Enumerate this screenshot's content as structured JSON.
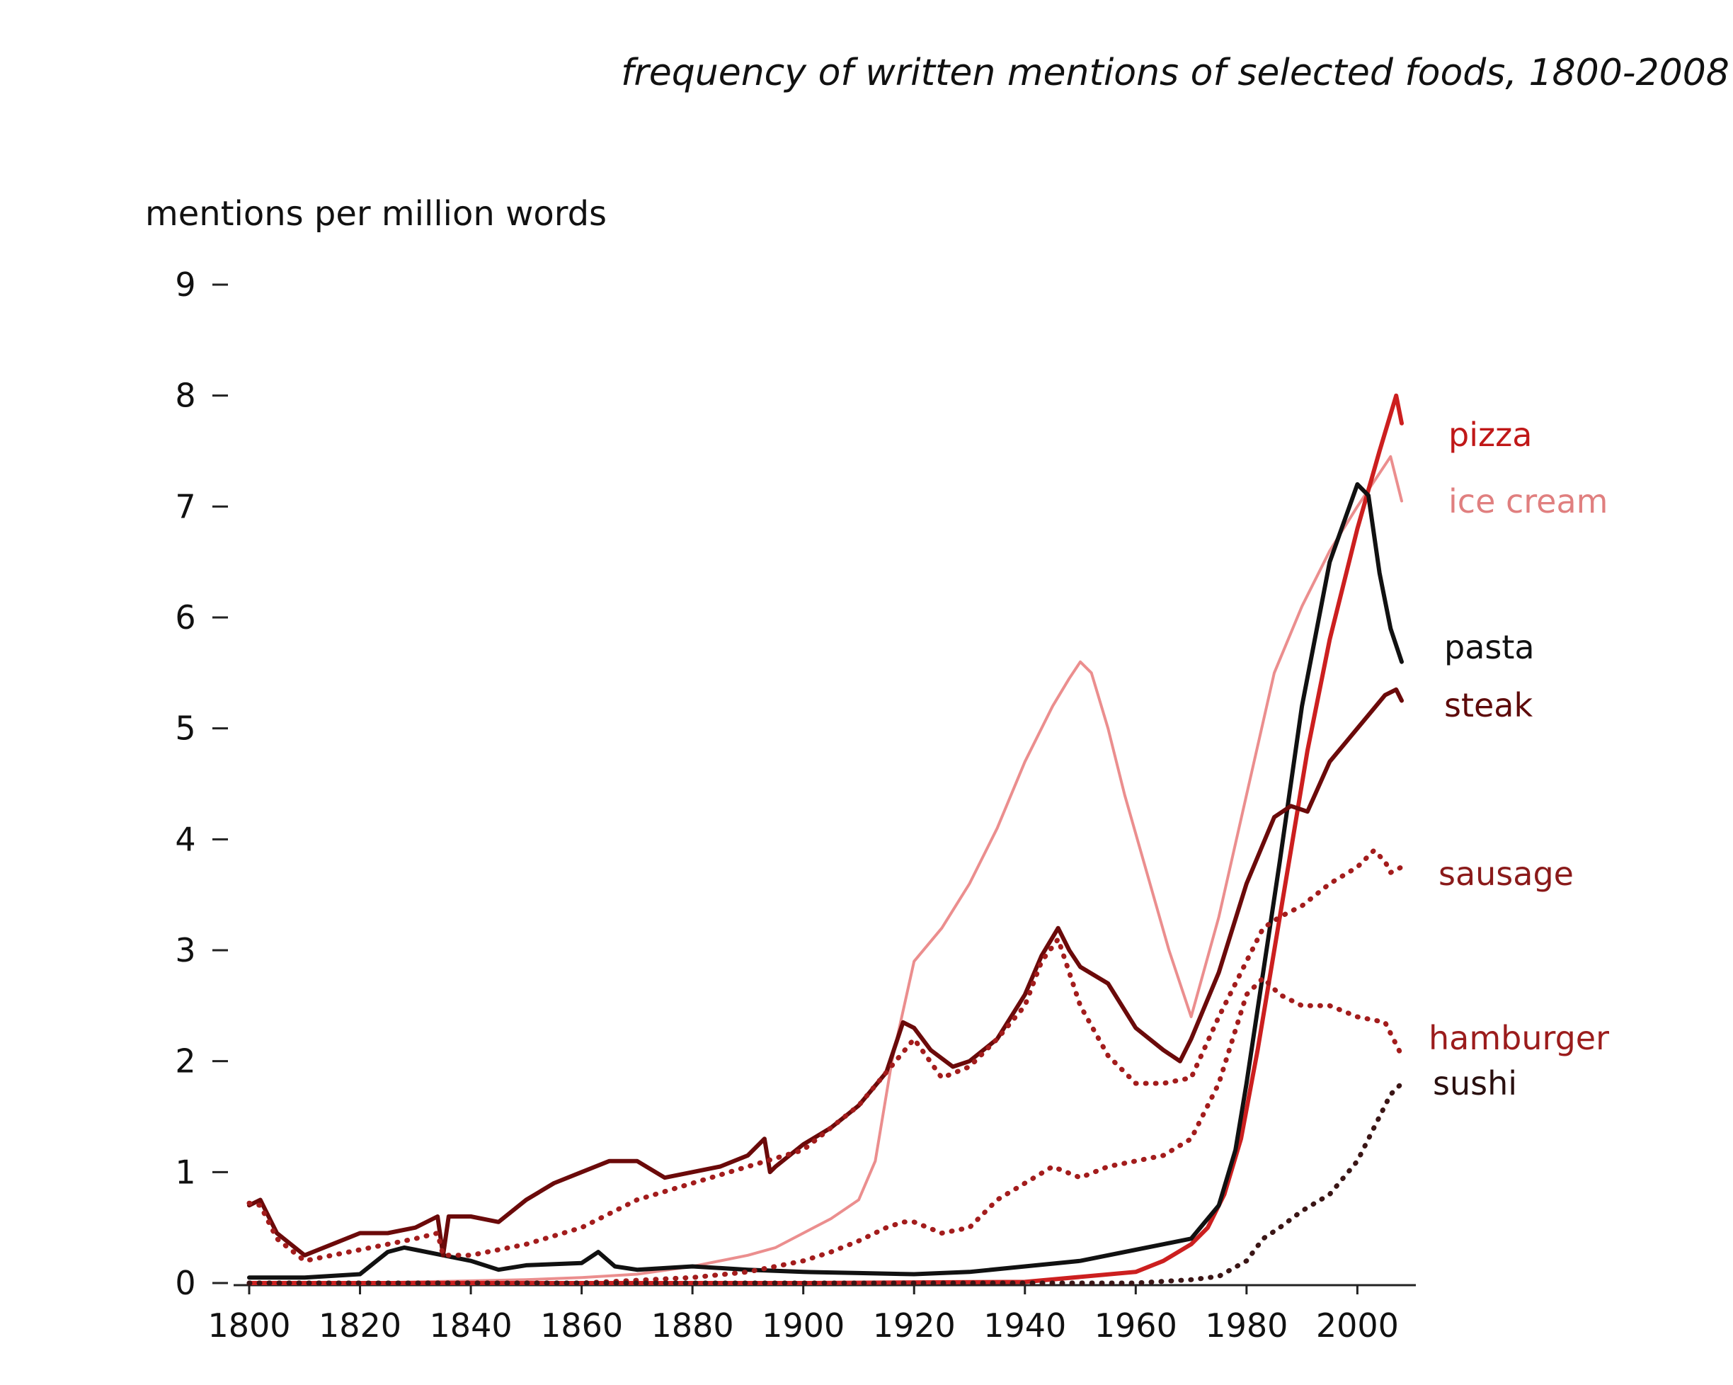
{
  "chart_data": {
    "type": "line",
    "title": "frequency of written mentions of selected foods, 1800-2008",
    "xlabel": "",
    "ylabel": "mentions per million words",
    "xlim": [
      1800,
      2008
    ],
    "ylim": [
      0,
      9
    ],
    "x_ticks": [
      "1800",
      "1820",
      "1840",
      "1860",
      "1880",
      "1900",
      "1920",
      "1940",
      "1960",
      "1980",
      "2000"
    ],
    "y_ticks": [
      "0",
      "1",
      "2",
      "3",
      "4",
      "5",
      "6",
      "7",
      "8",
      "9"
    ],
    "grid": false,
    "legend": "direct labels at right end of lines",
    "series": [
      {
        "name": "ice cream",
        "color": "#eb8e8e",
        "style": "solid",
        "x": [
          1800,
          1810,
          1820,
          1830,
          1840,
          1850,
          1860,
          1870,
          1880,
          1890,
          1895,
          1900,
          1905,
          1910,
          1913,
          1916,
          1920,
          1925,
          1930,
          1935,
          1940,
          1945,
          1948,
          1950,
          1952,
          1955,
          1958,
          1962,
          1966,
          1970,
          1975,
          1980,
          1985,
          1990,
          1995,
          2000,
          2004,
          2006,
          2008
        ],
        "y": [
          0.0,
          0.0,
          0.0,
          0.01,
          0.02,
          0.03,
          0.05,
          0.08,
          0.15,
          0.25,
          0.32,
          0.45,
          0.58,
          0.75,
          1.1,
          2.0,
          2.9,
          3.2,
          3.6,
          4.1,
          4.7,
          5.2,
          5.45,
          5.6,
          5.5,
          5.0,
          4.4,
          3.7,
          3.0,
          2.4,
          3.3,
          4.4,
          5.5,
          6.1,
          6.6,
          7.0,
          7.3,
          7.45,
          7.05
        ]
      },
      {
        "name": "pizza",
        "color": "#cc1f1f",
        "style": "solid",
        "x": [
          1800,
          1850,
          1900,
          1940,
          1960,
          1965,
          1970,
          1973,
          1976,
          1979,
          1982,
          1985,
          1988,
          1991,
          1995,
          2000,
          2004,
          2007,
          2008
        ],
        "y": [
          0.0,
          0.0,
          0.0,
          0.01,
          0.1,
          0.2,
          0.35,
          0.5,
          0.8,
          1.3,
          2.1,
          3.0,
          3.9,
          4.8,
          5.8,
          6.8,
          7.5,
          8.0,
          7.75
        ]
      },
      {
        "name": "pasta",
        "color": "#111111",
        "style": "solid",
        "x": [
          1800,
          1810,
          1820,
          1825,
          1828,
          1830,
          1835,
          1840,
          1845,
          1850,
          1860,
          1863,
          1866,
          1870,
          1880,
          1890,
          1900,
          1910,
          1920,
          1930,
          1940,
          1950,
          1960,
          1965,
          1970,
          1975,
          1978,
          1980,
          1983,
          1986,
          1990,
          1995,
          2000,
          2002,
          2004,
          2006,
          2008
        ],
        "y": [
          0.05,
          0.05,
          0.08,
          0.28,
          0.32,
          0.3,
          0.25,
          0.2,
          0.12,
          0.16,
          0.18,
          0.28,
          0.15,
          0.12,
          0.15,
          0.12,
          0.1,
          0.09,
          0.08,
          0.1,
          0.15,
          0.2,
          0.3,
          0.35,
          0.4,
          0.7,
          1.2,
          1.8,
          2.8,
          3.8,
          5.2,
          6.5,
          7.2,
          7.1,
          6.4,
          5.9,
          5.6
        ]
      },
      {
        "name": "steak",
        "color": "#6b0a0a",
        "style": "solid",
        "x": [
          1800,
          1802,
          1805,
          1810,
          1815,
          1820,
          1825,
          1830,
          1834,
          1835,
          1836,
          1840,
          1845,
          1850,
          1855,
          1860,
          1865,
          1870,
          1875,
          1880,
          1885,
          1890,
          1893,
          1894,
          1895,
          1900,
          1905,
          1910,
          1915,
          1918,
          1920,
          1923,
          1927,
          1930,
          1935,
          1940,
          1943,
          1946,
          1948,
          1950,
          1955,
          1960,
          1965,
          1968,
          1970,
          1975,
          1980,
          1985,
          1988,
          1991,
          1995,
          2000,
          2005,
          2007,
          2008
        ],
        "y": [
          0.7,
          0.75,
          0.45,
          0.25,
          0.35,
          0.45,
          0.45,
          0.5,
          0.6,
          0.25,
          0.6,
          0.6,
          0.55,
          0.75,
          0.9,
          1.0,
          1.1,
          1.1,
          0.95,
          1.0,
          1.05,
          1.15,
          1.3,
          1.0,
          1.05,
          1.25,
          1.4,
          1.6,
          1.9,
          2.35,
          2.3,
          2.1,
          1.95,
          2.0,
          2.2,
          2.6,
          2.95,
          3.2,
          3.0,
          2.85,
          2.7,
          2.3,
          2.1,
          2.0,
          2.2,
          2.8,
          3.6,
          4.2,
          4.3,
          4.25,
          4.7,
          5.0,
          5.3,
          5.35,
          5.25
        ]
      },
      {
        "name": "sausage",
        "color": "#a31c1c",
        "style": "dotted",
        "x": [
          1800,
          1802,
          1805,
          1810,
          1815,
          1820,
          1825,
          1830,
          1834,
          1835,
          1840,
          1850,
          1860,
          1870,
          1880,
          1890,
          1900,
          1910,
          1920,
          1925,
          1930,
          1935,
          1940,
          1943,
          1946,
          1948,
          1950,
          1955,
          1960,
          1965,
          1970,
          1975,
          1980,
          1983,
          1986,
          1990,
          1995,
          2000,
          2003,
          2005,
          2006,
          2008
        ],
        "y": [
          0.72,
          0.7,
          0.4,
          0.2,
          0.25,
          0.3,
          0.35,
          0.4,
          0.45,
          0.25,
          0.25,
          0.35,
          0.5,
          0.75,
          0.9,
          1.05,
          1.2,
          1.6,
          2.2,
          1.85,
          1.95,
          2.2,
          2.5,
          2.9,
          3.1,
          2.8,
          2.5,
          2.05,
          1.8,
          1.8,
          1.85,
          2.4,
          2.9,
          3.2,
          3.3,
          3.4,
          3.6,
          3.75,
          3.9,
          3.8,
          3.7,
          3.75
        ]
      },
      {
        "name": "hamburger",
        "color": "#a31c1c",
        "style": "dotted",
        "x": [
          1800,
          1860,
          1880,
          1890,
          1900,
          1905,
          1910,
          1915,
          1918,
          1920,
          1925,
          1930,
          1935,
          1940,
          1945,
          1950,
          1955,
          1960,
          1965,
          1970,
          1975,
          1980,
          1983,
          1986,
          1990,
          1995,
          2000,
          2005,
          2008
        ],
        "y": [
          0.0,
          0.0,
          0.05,
          0.1,
          0.2,
          0.28,
          0.38,
          0.5,
          0.55,
          0.55,
          0.45,
          0.5,
          0.75,
          0.9,
          1.05,
          0.95,
          1.05,
          1.1,
          1.15,
          1.3,
          1.8,
          2.6,
          2.75,
          2.6,
          2.5,
          2.5,
          2.4,
          2.35,
          2.05
        ]
      },
      {
        "name": "sushi",
        "color": "#3a1515",
        "style": "dotted",
        "x": [
          1800,
          1950,
          1960,
          1970,
          1975,
          1980,
          1983,
          1986,
          1990,
          1995,
          2000,
          2004,
          2006,
          2008
        ],
        "y": [
          0.0,
          0.0,
          0.0,
          0.03,
          0.06,
          0.2,
          0.4,
          0.5,
          0.65,
          0.8,
          1.1,
          1.5,
          1.7,
          1.8
        ]
      }
    ]
  }
}
